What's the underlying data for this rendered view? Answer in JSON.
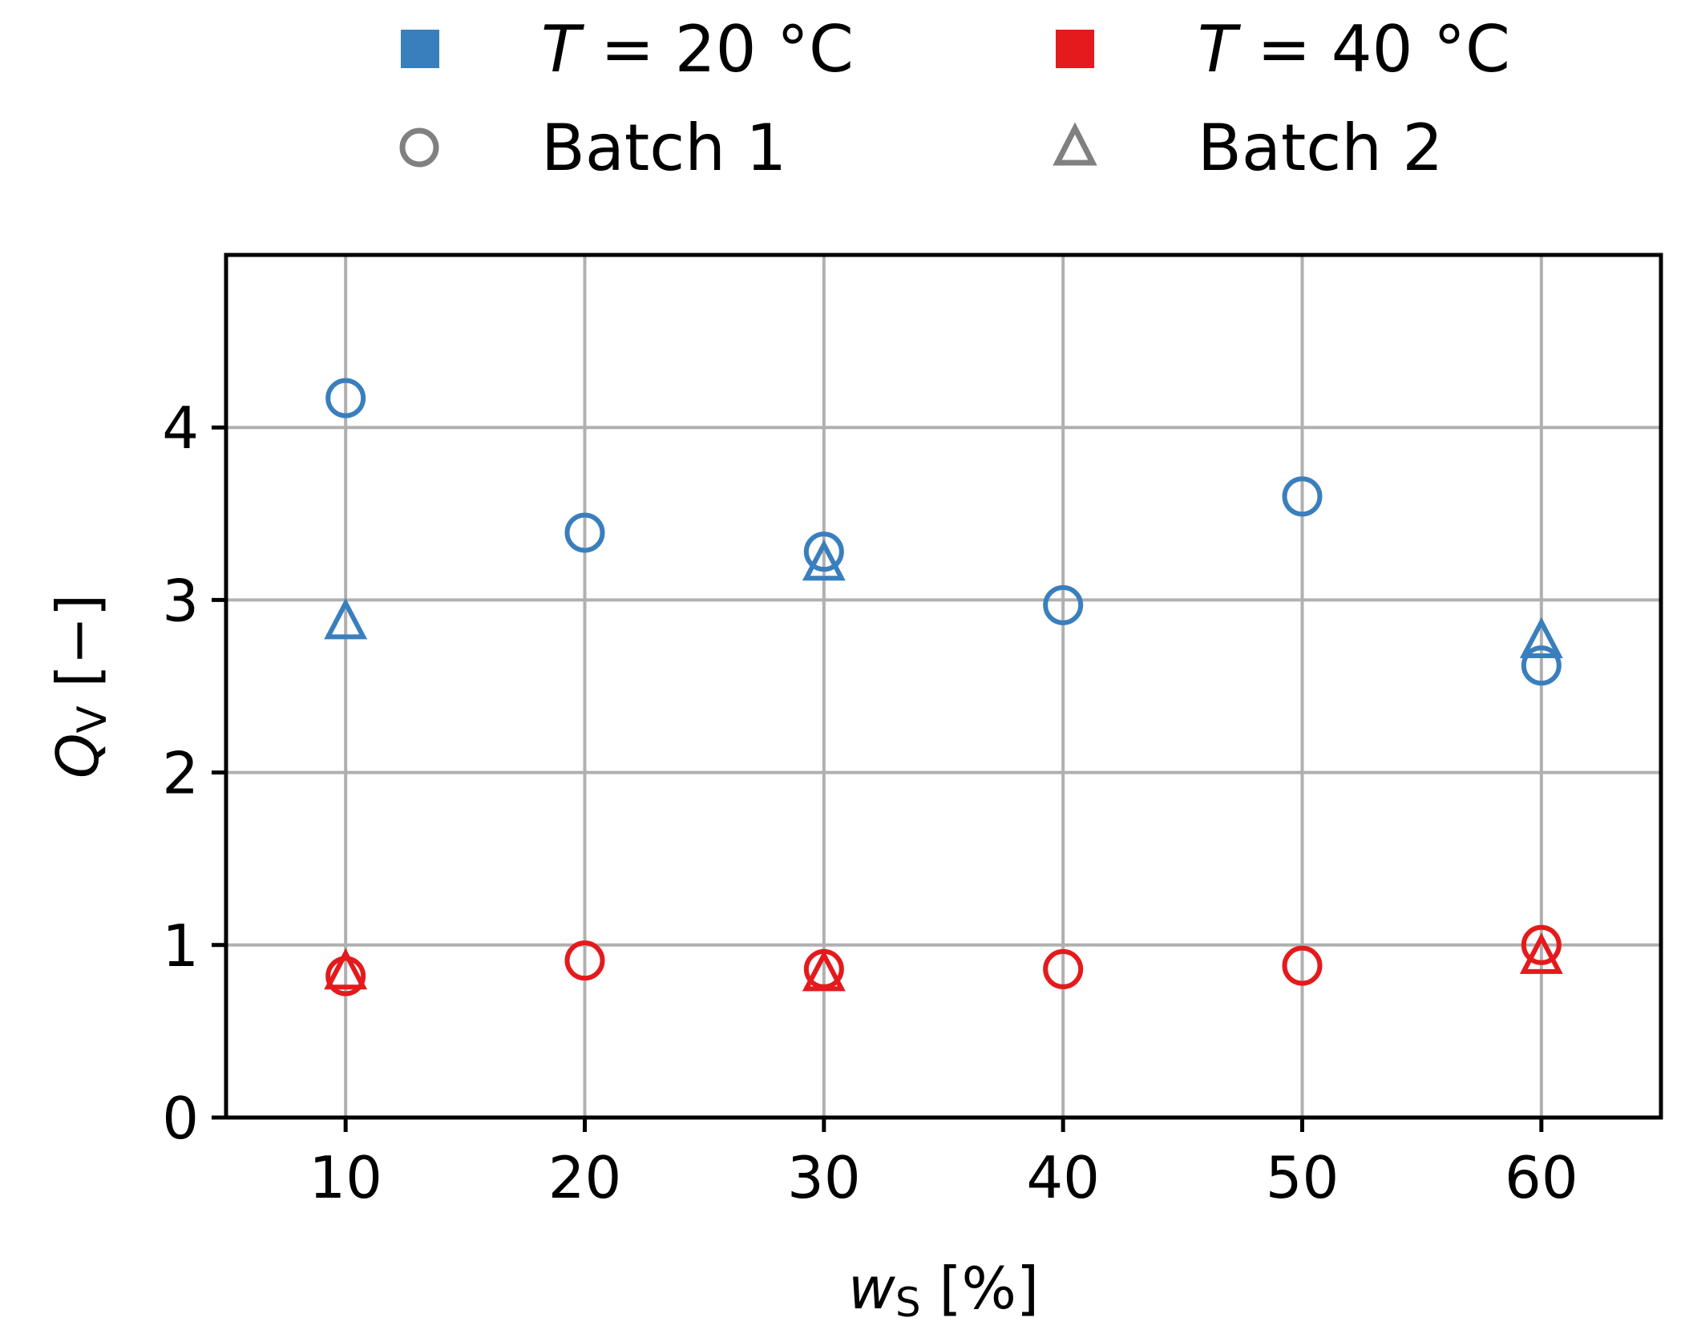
{
  "chart_data": {
    "type": "scatter",
    "xlabel": {
      "main": "w",
      "sub": "S",
      "unit": " [%]"
    },
    "ylabel": {
      "main": "Q",
      "sub": "V",
      "unit": " [−]"
    },
    "xlim": [
      5,
      65
    ],
    "ylim": [
      0,
      5
    ],
    "xticks": [
      10,
      20,
      30,
      40,
      50,
      60
    ],
    "yticks": [
      0,
      1,
      2,
      3,
      4
    ],
    "grid": true,
    "legend": {
      "placement": "top",
      "entries": [
        {
          "kind": "color",
          "color": "#3a7fbd",
          "prefix": "T",
          "text": " =  20 °C"
        },
        {
          "kind": "color",
          "color": "#e41a1c",
          "prefix": "T",
          "text": " =  40 °C"
        },
        {
          "kind": "marker",
          "marker": "circle",
          "color": "#808080",
          "text": "Batch 1"
        },
        {
          "kind": "marker",
          "marker": "triangle",
          "color": "#808080",
          "text": "Batch 2"
        }
      ]
    },
    "series": [
      {
        "name": "T = 20 °C, Batch 1",
        "color": "#3a7fbd",
        "marker": "circle",
        "x": [
          10,
          20,
          30,
          40,
          50,
          60
        ],
        "y": [
          4.17,
          3.39,
          3.28,
          2.97,
          3.6,
          2.62
        ]
      },
      {
        "name": "T = 20 °C, Batch 2",
        "color": "#3a7fbd",
        "marker": "triangle",
        "x": [
          10,
          30,
          60
        ],
        "y": [
          2.87,
          3.21,
          2.76
        ]
      },
      {
        "name": "T = 40 °C, Batch 1",
        "color": "#e41a1c",
        "marker": "circle",
        "x": [
          10,
          20,
          30,
          40,
          50,
          60
        ],
        "y": [
          0.82,
          0.91,
          0.86,
          0.86,
          0.88,
          1.0
        ]
      },
      {
        "name": "T = 40 °C, Batch 2",
        "color": "#e41a1c",
        "marker": "triangle",
        "x": [
          10,
          30,
          60
        ],
        "y": [
          0.84,
          0.83,
          0.93
        ]
      }
    ]
  }
}
